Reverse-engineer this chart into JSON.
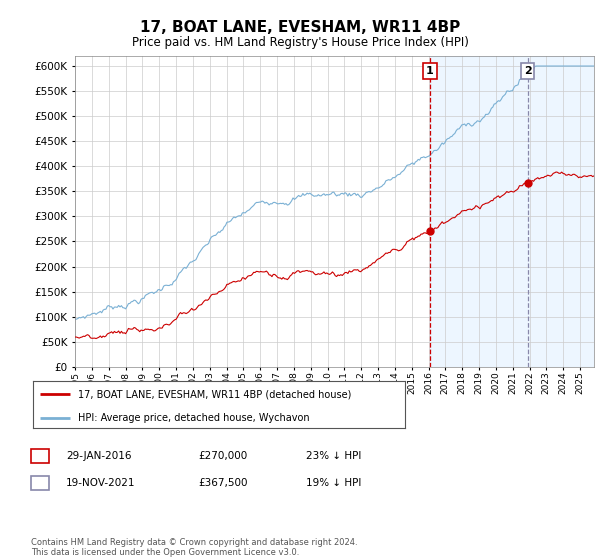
{
  "title": "17, BOAT LANE, EVESHAM, WR11 4BP",
  "subtitle": "Price paid vs. HM Land Registry's House Price Index (HPI)",
  "ylabel_ticks": [
    0,
    50000,
    100000,
    150000,
    200000,
    250000,
    300000,
    350000,
    400000,
    450000,
    500000,
    550000,
    600000
  ],
  "ylim": [
    0,
    620000
  ],
  "xlim_start": 1995.0,
  "xlim_end": 2025.83,
  "sale1_date": 2016.08,
  "sale1_price": 270000,
  "sale1_label": "1",
  "sale1_text": "29-JAN-2016",
  "sale1_amount": "£270,000",
  "sale1_pct": "23% ↓ HPI",
  "sale2_date": 2021.89,
  "sale2_price": 367500,
  "sale2_label": "2",
  "sale2_text": "19-NOV-2021",
  "sale2_amount": "£367,500",
  "sale2_pct": "19% ↓ HPI",
  "line1_color": "#cc0000",
  "line2_color": "#7ab0d4",
  "marker_color": "#cc0000",
  "vline1_color": "#cc0000",
  "vline2_color": "#aaaacc",
  "legend_label1": "17, BOAT LANE, EVESHAM, WR11 4BP (detached house)",
  "legend_label2": "HPI: Average price, detached house, Wychavon",
  "footnote": "Contains HM Land Registry data © Crown copyright and database right 2024.\nThis data is licensed under the Open Government Licence v3.0.",
  "plot_bg": "#ffffff",
  "shade_color": "#ddeeff",
  "grid_color": "#cccccc"
}
